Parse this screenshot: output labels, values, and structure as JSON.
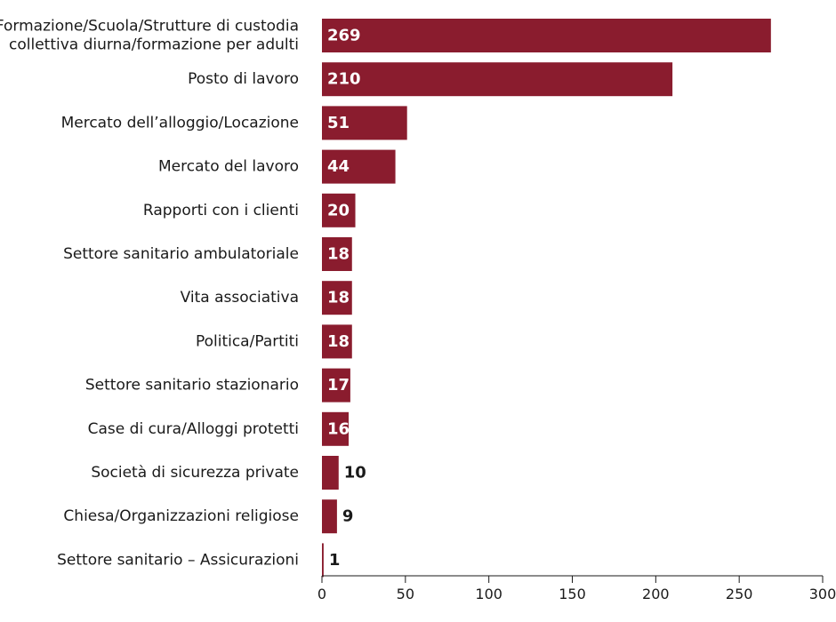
{
  "chart_data": {
    "type": "bar",
    "orientation": "horizontal",
    "title": "",
    "xlabel": "",
    "ylabel": "",
    "categories": [
      [
        "Formazione/Scuola/Strutture di custodia",
        "collettiva diurna/formazione per adulti"
      ],
      [
        "Posto di lavoro"
      ],
      [
        "Mercato dell’alloggio/Locazione"
      ],
      [
        "Mercato del lavoro"
      ],
      [
        "Rapporti con i clienti"
      ],
      [
        "Settore sanitario ambulatoriale"
      ],
      [
        "Vita associativa"
      ],
      [
        "Politica/Partiti"
      ],
      [
        "Settore sanitario stazionario"
      ],
      [
        "Case di cura/Alloggi protetti"
      ],
      [
        "Società di sicurezza private"
      ],
      [
        "Chiesa/Organizzazioni religiose"
      ],
      [
        "Settore sanitario – Assicurazioni"
      ]
    ],
    "values": [
      269,
      210,
      51,
      44,
      20,
      18,
      18,
      18,
      17,
      16,
      10,
      9,
      1
    ],
    "xlim": [
      0,
      300
    ],
    "xticks": [
      0,
      50,
      100,
      150,
      200,
      250,
      300
    ],
    "grid": false,
    "legend": "none",
    "bar_color": "#8a1c2e",
    "label_inside_color": "#ffffff",
    "label_outside_color": "#1a1a1a"
  }
}
